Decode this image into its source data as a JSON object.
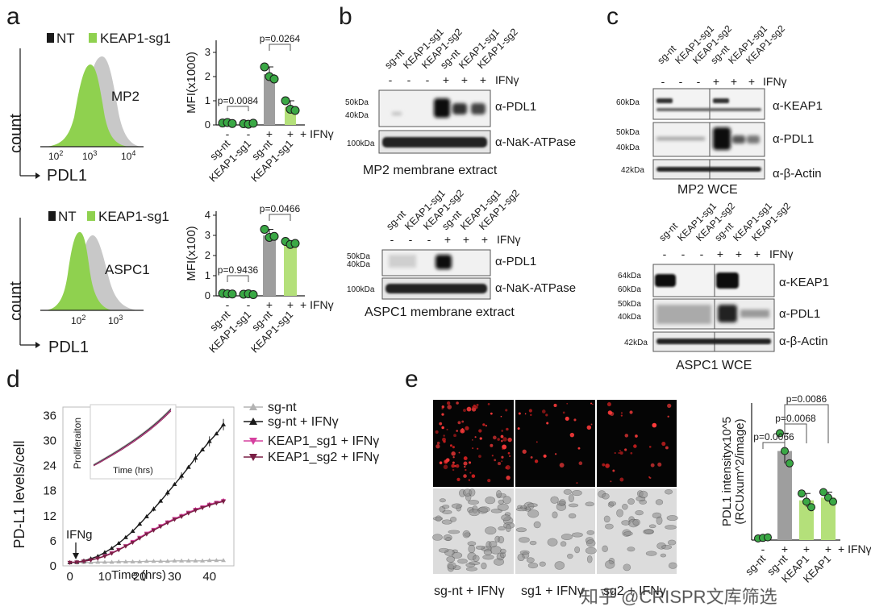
{
  "panel_labels": [
    "a",
    "b",
    "c",
    "d",
    "e"
  ],
  "a": {
    "legend_nt": "NT",
    "legend_sg": "KEAP1-sg1",
    "hist_top": {
      "cell_line": "MP2",
      "ylabel": "count",
      "xlabel": "PDL1",
      "ticks": [
        "10",
        "10",
        "10"
      ],
      "exps": [
        "2",
        "3",
        "4"
      ]
    },
    "hist_bottom": {
      "cell_line": "ASPC1",
      "ylabel": "count",
      "xlabel": "PDL1",
      "ticks": [
        "10",
        "10"
      ],
      "exps": [
        "2",
        "3"
      ]
    },
    "bar_top": {
      "ylabel": "MFI(x1000)",
      "yticks": [
        "0",
        "1",
        "2",
        "3"
      ],
      "ylim": [
        0,
        3.5
      ],
      "values": [
        0.08,
        0.05,
        2.1,
        0.75
      ],
      "points": [
        [
          0.08,
          0.1,
          0.06
        ],
        [
          0.05,
          0.03,
          0.07
        ],
        [
          2.4,
          2.0,
          1.9
        ],
        [
          1.0,
          0.65,
          0.6
        ]
      ],
      "pvalue_left": "p=0.0084",
      "pvalue_right": "p=0.0264",
      "ifn_marks": [
        "-",
        "-",
        "+",
        "+"
      ],
      "ifn_label": "IFNγ",
      "categories": [
        "sg-nt",
        "KEAP1-sg1",
        "sg-nt",
        "KEAP1-sg1"
      ]
    },
    "bar_bottom": {
      "ylabel": "MFI(x100)",
      "yticks": [
        "0",
        "1",
        "2",
        "3",
        "4"
      ],
      "ylim": [
        0,
        4.2
      ],
      "values": [
        0.1,
        0.08,
        3.0,
        2.6
      ],
      "points": [
        [
          0.12,
          0.1,
          0.09
        ],
        [
          0.08,
          0.1,
          0.06
        ],
        [
          3.3,
          2.9,
          2.95
        ],
        [
          2.7,
          2.55,
          2.6
        ]
      ],
      "pvalue_left": "p=0.9436",
      "pvalue_right": "p=0.0466",
      "ifn_marks": [
        "-",
        "-",
        "+",
        "+"
      ],
      "ifn_label": "IFNγ",
      "categories": [
        "sg-nt",
        "KEAP1-sg1",
        "sg-nt",
        "KEAP1-sg1"
      ]
    }
  },
  "b": {
    "lanes": [
      "sg-nt",
      "KEAP1-sg1",
      "KEAP1-sg2",
      "sg-nt",
      "KEAP1-sg1",
      "KEAP1-sg2"
    ],
    "ifn_marks": [
      "-",
      "-",
      "-",
      "+",
      "+",
      "+"
    ],
    "ifn_label": "IFNγ",
    "top": {
      "mw1": "50kDa",
      "mw2": "40kDa",
      "mw3": "100kDa",
      "blot1": "α-PDL1",
      "blot2": "α-NaK-ATPase",
      "caption": "MP2 membrane extract"
    },
    "bottom": {
      "mw1": "50kDa",
      "mw2": "40kDa",
      "mw3": "100kDa",
      "blot1": "α-PDL1",
      "blot2": "α-NaK-ATPase",
      "caption": "ASPC1 membrane extract"
    }
  },
  "c": {
    "lanes": [
      "sg-nt",
      "KEAP1-sg1",
      "KEAP1-sg2",
      "sg-nt",
      "KEAP1-sg1",
      "KEAP1-sg2"
    ],
    "ifn_marks": [
      "-",
      "-",
      "-",
      "+",
      "+",
      "+"
    ],
    "ifn_label": "IFNγ",
    "top": {
      "mw_keap": "60kDa",
      "mw_pdl1a": "50kDa",
      "mw_pdl1b": "40kDa",
      "mw_actin": "42kDa",
      "blot1": "α-KEAP1",
      "blot2": "α-PDL1",
      "blot3": "α-β-Actin",
      "caption": "MP2 WCE"
    },
    "bottom": {
      "mw_keap1": "64kDa",
      "mw_keap2": "60kDa",
      "mw_pdl1a": "50kDa",
      "mw_pdl1b": "40kDa",
      "mw_actin": "42kDa",
      "blot1": "α-KEAP1",
      "blot2": "α-PDL1",
      "blot3": "α-β-Actin",
      "caption": "ASPC1 WCE"
    }
  },
  "d": {
    "ylabel": "PD-L1 levels/cell",
    "xlabel": "Time (hrs)",
    "yticks": [
      "0",
      "6",
      "12",
      "18",
      "24",
      "30",
      "36"
    ],
    "xticks": [
      "0",
      "10",
      "20",
      "30",
      "40"
    ],
    "annotation": "IFNg",
    "inset_title": "Proliferaiton",
    "inset_xlabel": "Time (hrs)",
    "legend": [
      "sg-nt",
      "sg-nt + IFNγ",
      "KEAP1_sg1 + IFNγ",
      "KEAP1_sg2 + IFNγ"
    ],
    "colors": {
      "sg_nt": "#b3b3b3",
      "sg_nt_ifn": "#1a1a1a",
      "sg1": "#d6409f",
      "sg2": "#7a1f45"
    }
  },
  "chart_data": {
    "type": "line",
    "x": [
      0,
      2,
      4,
      6,
      8,
      10,
      12,
      14,
      16,
      18,
      20,
      22,
      24,
      26,
      28,
      30,
      32,
      34,
      36,
      38,
      40,
      42,
      44
    ],
    "series": [
      {
        "name": "sg-nt",
        "values": [
          0.8,
          0.8,
          0.8,
          0.8,
          0.9,
          0.9,
          0.9,
          1.0,
          1.0,
          1.0,
          1.0,
          1.1,
          1.1,
          1.1,
          1.1,
          1.2,
          1.2,
          1.2,
          1.2,
          1.2,
          1.3,
          1.3,
          1.3
        ]
      },
      {
        "name": "sg-nt + IFNγ",
        "values": [
          0.8,
          0.9,
          1.2,
          1.7,
          2.3,
          3.2,
          4.2,
          5.4,
          6.8,
          8.3,
          10.0,
          11.8,
          13.6,
          15.5,
          17.5,
          19.5,
          21.5,
          23.6,
          25.8,
          27.8,
          29.8,
          31.6,
          33.8
        ]
      },
      {
        "name": "KEAP1_sg1 + IFNγ",
        "values": [
          0.8,
          0.9,
          1.1,
          1.4,
          1.8,
          2.4,
          3.1,
          3.9,
          4.8,
          5.8,
          6.8,
          7.8,
          8.7,
          9.6,
          10.5,
          11.3,
          12.0,
          12.8,
          13.5,
          14.1,
          14.7,
          15.2,
          15.6
        ]
      },
      {
        "name": "KEAP1_sg2 + IFNγ",
        "values": [
          0.8,
          0.9,
          1.1,
          1.4,
          1.8,
          2.3,
          3.0,
          3.8,
          4.7,
          5.6,
          6.6,
          7.6,
          8.5,
          9.4,
          10.3,
          11.1,
          11.8,
          12.6,
          13.3,
          13.9,
          14.5,
          15.0,
          15.4
        ]
      }
    ],
    "xlabel": "Time (hrs)",
    "ylabel": "PD-L1 levels/cell",
    "xlim": [
      -2,
      47
    ],
    "ylim": [
      0,
      38
    ]
  },
  "e": {
    "image_captions": [
      "sg-nt + IFNγ",
      "sg1 + IFNγ",
      "sg2 + IFNγ"
    ],
    "bar": {
      "ylabel": "PDL1 intensityx10^5",
      "ylabel2": "(RCUxum^2/image)",
      "values": [
        0.08,
        3.25,
        1.45,
        1.55
      ],
      "points": [
        [
          0.06,
          0.08,
          0.1
        ],
        [
          3.9,
          3.25,
          2.8
        ],
        [
          1.7,
          1.4,
          1.2
        ],
        [
          1.75,
          1.55,
          1.4
        ]
      ],
      "ylim": [
        0,
        5
      ],
      "pvalues": [
        "p=0.0066",
        "p=0.0068",
        "p=0.0086"
      ],
      "ifn_marks": [
        "-",
        "+",
        "+",
        "+"
      ],
      "ifn_label": "IFNγ",
      "categories": [
        "sg-nt",
        "sg-nt",
        "KEAP1",
        "KEAP1"
      ]
    },
    "watermark": "知乎 @CRISPR文库筛选"
  }
}
